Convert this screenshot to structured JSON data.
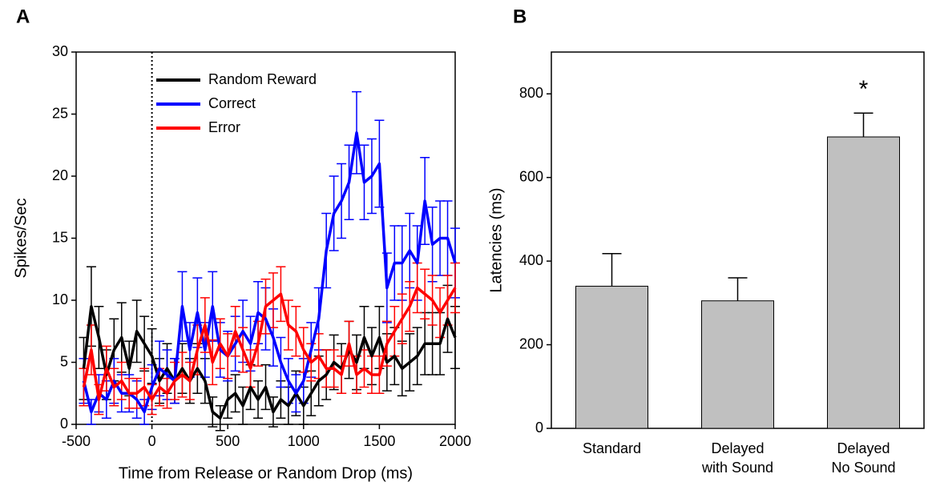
{
  "chart_data": [
    {
      "type": "line",
      "panel": "A",
      "xlabel": "Time from Release or Random Drop (ms)",
      "ylabel": "Spikes/Sec",
      "xlim": [
        -500,
        2000
      ],
      "ylim": [
        0,
        30
      ],
      "xticks": [
        -500,
        0,
        500,
        1000,
        1500,
        2000
      ],
      "yticks": [
        0,
        5,
        10,
        15,
        20,
        25,
        30
      ],
      "vline": 0,
      "x": [
        -450,
        -400,
        -350,
        -300,
        -250,
        -200,
        -150,
        -100,
        -50,
        0,
        50,
        100,
        150,
        200,
        250,
        300,
        350,
        400,
        450,
        500,
        550,
        600,
        650,
        700,
        750,
        800,
        850,
        900,
        950,
        1000,
        1050,
        1100,
        1150,
        1200,
        1250,
        1300,
        1350,
        1400,
        1450,
        1500,
        1550,
        1600,
        1650,
        1700,
        1750,
        1800,
        1850,
        1900,
        1950,
        2000
      ],
      "series": [
        {
          "name": "Random Reward",
          "color": "#000000",
          "values": [
            4.5,
            9.5,
            7,
            4,
            6,
            7,
            4.5,
            7.5,
            6.5,
            5.5,
            3.5,
            4.5,
            3.5,
            4.5,
            3.5,
            4.5,
            3.5,
            1,
            0.5,
            2,
            2.5,
            1.5,
            3,
            2,
            3,
            1,
            2,
            1.5,
            2.5,
            1.5,
            2.5,
            3.5,
            4,
            5,
            4.5,
            6,
            5,
            7,
            5.5,
            7,
            5,
            5.5,
            4.5,
            5,
            5.5,
            6.5,
            6.5,
            6.5,
            8.5,
            7
          ],
          "errors": [
            2.5,
            3.2,
            2.5,
            2,
            2.5,
            2.8,
            2.2,
            2.5,
            2.2,
            2.2,
            1.8,
            2,
            1.8,
            2,
            1.8,
            2,
            1.8,
            1.2,
            1,
            1.5,
            1.5,
            1.5,
            1.8,
            1.5,
            1.8,
            1.2,
            1.5,
            1.5,
            1.8,
            1.5,
            1.8,
            2,
            2,
            2.2,
            2,
            2.3,
            2.2,
            2.5,
            2.3,
            2.5,
            2.3,
            2.3,
            2.2,
            2.3,
            2.3,
            2.5,
            2.5,
            2.5,
            2.7,
            2.5
          ]
        },
        {
          "name": "Correct",
          "color": "#0000ff",
          "values": [
            3.5,
            1,
            2.5,
            2,
            3.5,
            2.5,
            2.5,
            2,
            1,
            3,
            4.5,
            4,
            3.5,
            9.5,
            6,
            9,
            6,
            9.5,
            6,
            5.5,
            6.5,
            7.5,
            6.5,
            9,
            8.5,
            7,
            5,
            3.5,
            2.5,
            3.5,
            6,
            8.5,
            14,
            17,
            18,
            19.5,
            23.5,
            19.5,
            20,
            21,
            11,
            13,
            13,
            14,
            13,
            18,
            14.5,
            15,
            15,
            13
          ],
          "errors": [
            1.8,
            1,
            1.5,
            1.5,
            1.8,
            1.5,
            1.5,
            1.5,
            1,
            1.8,
            2.2,
            2,
            1.8,
            2.8,
            2.2,
            2.8,
            2.2,
            2.8,
            2.2,
            2,
            2.2,
            2.5,
            2.2,
            2.5,
            2.5,
            2.3,
            2,
            1.8,
            1.5,
            1.8,
            2.2,
            2.5,
            3,
            3,
            3,
            3,
            3.3,
            3,
            3,
            3.5,
            2.8,
            3,
            3,
            3,
            3,
            3.5,
            3,
            3,
            3,
            2.8
          ]
        },
        {
          "name": "Error",
          "color": "#ff0000",
          "values": [
            3,
            6,
            2,
            4.5,
            3,
            3.5,
            2.5,
            2.5,
            3,
            2,
            3,
            2.5,
            3.5,
            4,
            3.5,
            6,
            8,
            5,
            6.5,
            5.5,
            7.5,
            6,
            4.5,
            6.5,
            9.5,
            10,
            10.5,
            8,
            7.5,
            6,
            5,
            5.5,
            4.5,
            4.5,
            4,
            6.5,
            4,
            4.5,
            4,
            4,
            6.5,
            7.5,
            8.5,
            9.5,
            11,
            10.5,
            10,
            9,
            10,
            11
          ],
          "errors": [
            1.5,
            2,
            1.2,
            1.8,
            1.5,
            1.5,
            1.2,
            1.2,
            1.5,
            1.2,
            1.5,
            1.2,
            1.5,
            1.8,
            1.5,
            2,
            2.2,
            1.8,
            2,
            1.8,
            2,
            1.8,
            1.5,
            1.8,
            2.2,
            2.2,
            2.2,
            2,
            2,
            1.8,
            1.5,
            1.8,
            1.5,
            1.5,
            1.5,
            1.8,
            1.5,
            1.5,
            1.5,
            1.5,
            1.8,
            2,
            2,
            2,
            2,
            2,
            2,
            2,
            2,
            2
          ]
        }
      ]
    },
    {
      "type": "bar",
      "panel": "B",
      "ylabel": "Latencies (ms)",
      "categories": [
        [
          "Standard"
        ],
        [
          "Delayed",
          "with Sound"
        ],
        [
          "Delayed",
          "No Sound"
        ]
      ],
      "values": [
        340,
        305,
        697
      ],
      "errors": [
        78,
        55,
        57
      ],
      "color": "#c0c0c0",
      "annotation": "*",
      "ylim": [
        0,
        900
      ],
      "yticks": [
        0,
        200,
        400,
        600,
        800
      ]
    }
  ]
}
